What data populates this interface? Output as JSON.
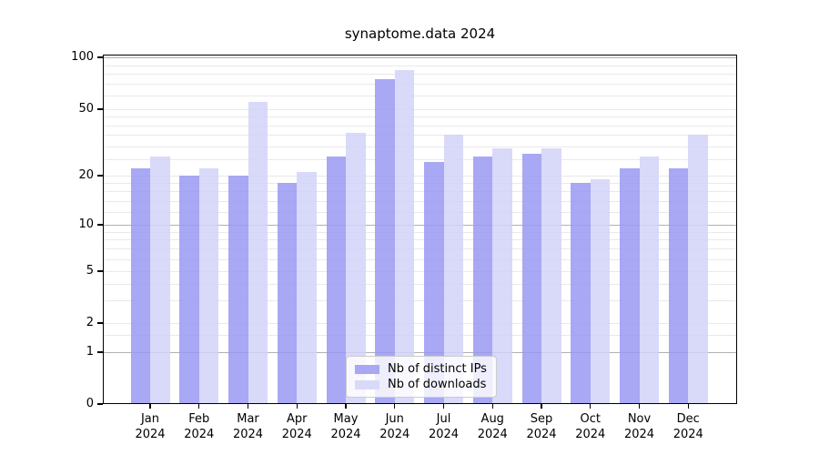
{
  "chart_data": {
    "type": "bar",
    "title": "synaptome.data 2024",
    "categories": [
      "Jan",
      "Feb",
      "Mar",
      "Apr",
      "May",
      "Jun",
      "Jul",
      "Aug",
      "Sep",
      "Oct",
      "Nov",
      "Dec"
    ],
    "year_label": "2024",
    "series": [
      {
        "name": "Nb of distinct IPs",
        "key": "distinct-ips",
        "values": [
          22,
          20,
          20,
          18,
          26,
          75,
          24,
          26,
          27,
          18,
          22,
          22
        ],
        "bar_color": "rgba(153,153,242,0.85)",
        "swatch_color": "#a8a8f3"
      },
      {
        "name": "Nb of downloads",
        "key": "downloads",
        "values": [
          26,
          22,
          55,
          21,
          36,
          84,
          35,
          29,
          29,
          19,
          26,
          35
        ],
        "bar_color": "rgba(210,210,248,0.85)",
        "swatch_color": "#d9d9f8"
      }
    ],
    "yscale": "piecewise-log",
    "ylim": [
      0,
      100
    ],
    "ytick_values": [
      0,
      1,
      2,
      5,
      10,
      20,
      50,
      100
    ],
    "major_grid_values": [
      1,
      10,
      100
    ],
    "minor_grid_values": [
      1.5,
      2,
      3,
      4,
      5,
      6,
      7,
      8,
      9,
      12,
      14,
      16,
      18,
      20,
      25,
      30,
      35,
      40,
      45,
      50,
      60,
      70,
      80,
      90
    ],
    "grid": true,
    "xlabel": "",
    "ylabel": "",
    "legend_position": "bottom-center",
    "colors": {
      "minor_grid": "#e9e9e9",
      "major_grid": "#b0b0b0",
      "axis": "#000000",
      "legend_border": "#cccccc"
    }
  }
}
